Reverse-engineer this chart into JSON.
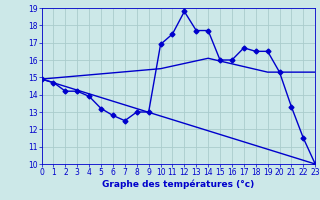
{
  "xlabel": "Graphe des températures (°c)",
  "bg_color": "#cce8e8",
  "line_color": "#0000cc",
  "grid_color": "#aacccc",
  "xlim": [
    0,
    23
  ],
  "ylim": [
    10,
    19
  ],
  "yticks": [
    10,
    11,
    12,
    13,
    14,
    15,
    16,
    17,
    18,
    19
  ],
  "xticks": [
    0,
    1,
    2,
    3,
    4,
    5,
    6,
    7,
    8,
    9,
    10,
    11,
    12,
    13,
    14,
    15,
    16,
    17,
    18,
    19,
    20,
    21,
    22,
    23
  ],
  "line1_x": [
    0,
    1,
    2,
    3,
    4,
    5,
    6,
    7,
    8,
    9,
    10,
    11,
    12,
    13,
    14,
    15,
    16,
    17,
    18,
    19,
    20,
    21,
    22,
    23
  ],
  "line1_y": [
    14.9,
    14.7,
    14.2,
    14.2,
    13.9,
    13.2,
    12.8,
    12.5,
    13.0,
    13.0,
    16.9,
    17.5,
    18.8,
    17.7,
    17.7,
    16.0,
    16.0,
    16.7,
    16.5,
    16.5,
    15.3,
    13.3,
    11.5,
    10.0
  ],
  "line2_x": [
    0,
    23
  ],
  "line2_y": [
    14.9,
    10.0
  ],
  "line3_x": [
    0,
    10,
    14,
    19,
    20,
    23
  ],
  "line3_y": [
    14.9,
    15.5,
    16.1,
    15.3,
    15.3,
    15.3
  ],
  "marker": "D",
  "markersize": 2.5,
  "linewidth": 1.0,
  "tick_fontsize": 5.5,
  "xlabel_fontsize": 6.5
}
